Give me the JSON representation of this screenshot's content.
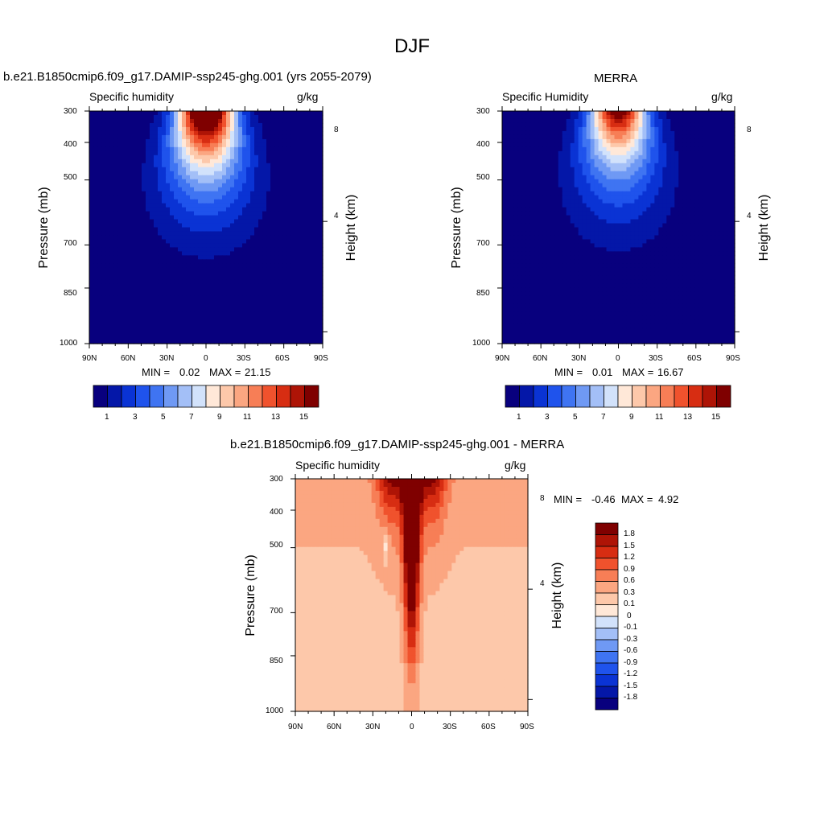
{
  "title": "DJF",
  "colors": {
    "seq_palette": [
      "#08007e",
      "#0417a8",
      "#0a33d4",
      "#1f53ec",
      "#3f74f2",
      "#6f99f4",
      "#a3bff7",
      "#d2e2fb",
      "#ffe8d8",
      "#fdc8aa",
      "#fba681",
      "#f77e56",
      "#f0522d",
      "#d72d12",
      "#ae1406",
      "#7f0000"
    ],
    "div_palette": [
      "#08007e",
      "#0417a8",
      "#0a33d4",
      "#1f53ec",
      "#3f74f2",
      "#6f99f4",
      "#a3bff7",
      "#d2e2fb",
      "#ffe8d8",
      "#fdc8aa",
      "#fba681",
      "#f77e56",
      "#f0522d",
      "#d72d12",
      "#ae1406",
      "#7f0000"
    ]
  },
  "chart_data": [
    {
      "type": "heatmap",
      "title": "b.e21.B1850cmip6.f09_g17.DAMIP-ssp245-ghg.001 (yrs 2055-2079)",
      "left_label": "Specific humidity",
      "right_label": "g/kg",
      "xlabel": "",
      "ylabel": "Pressure (mb)",
      "y2label": "Height (km)",
      "x_ticks": [
        "90N",
        "60N",
        "30N",
        "0",
        "30S",
        "60S",
        "90S"
      ],
      "y_ticks": [
        "300",
        "400",
        "500",
        "700",
        "850",
        "1000"
      ],
      "y2_ticks": [
        "8",
        "4"
      ],
      "ylim": [
        1000,
        300
      ],
      "min_label": "MIN =",
      "min_value": "0.02",
      "max_label": "MAX =",
      "max_value": "21.15",
      "colorbar_labels": [
        "1",
        "3",
        "5",
        "7",
        "9",
        "11",
        "13",
        "15"
      ],
      "peak": 21.15,
      "peak_lat": 0
    },
    {
      "type": "heatmap",
      "title": "MERRA",
      "left_label": "Specific Humidity",
      "right_label": "g/kg",
      "xlabel": "",
      "ylabel": "Pressure (mb)",
      "y2label": "Height (km)",
      "x_ticks": [
        "90N",
        "60N",
        "30N",
        "0",
        "30S",
        "60S",
        "90S"
      ],
      "y_ticks": [
        "300",
        "400",
        "500",
        "700",
        "850",
        "1000"
      ],
      "y2_ticks": [
        "8",
        "4"
      ],
      "ylim": [
        1000,
        300
      ],
      "min_label": "MIN =",
      "min_value": "0.01",
      "max_label": "MAX =",
      "max_value": "16.67",
      "colorbar_labels": [
        "1",
        "3",
        "5",
        "7",
        "9",
        "11",
        "13",
        "15"
      ],
      "peak": 16.67,
      "peak_lat": 0
    },
    {
      "type": "heatmap",
      "title": "b.e21.B1850cmip6.f09_g17.DAMIP-ssp245-ghg.001 - MERRA",
      "left_label": "Specific humidity",
      "right_label": "g/kg",
      "xlabel": "",
      "ylabel": "Pressure (mb)",
      "y2label": "Height (km)",
      "x_ticks": [
        "90N",
        "60N",
        "30N",
        "0",
        "30S",
        "60S",
        "90S"
      ],
      "y_ticks": [
        "300",
        "400",
        "500",
        "700",
        "850",
        "1000"
      ],
      "y2_ticks": [
        "8",
        "4"
      ],
      "ylim": [
        1000,
        300
      ],
      "min_label": "MIN =",
      "min_value": "-0.46",
      "max_label": "MAX =",
      "max_value": "4.92",
      "colorbar_labels": [
        "1.8",
        "1.5",
        "1.2",
        "0.9",
        "0.6",
        "0.3",
        "0.1",
        "0",
        "-0.1",
        "-0.3",
        "-0.6",
        "-0.9",
        "-1.2",
        "-1.5",
        "-1.8"
      ]
    }
  ]
}
